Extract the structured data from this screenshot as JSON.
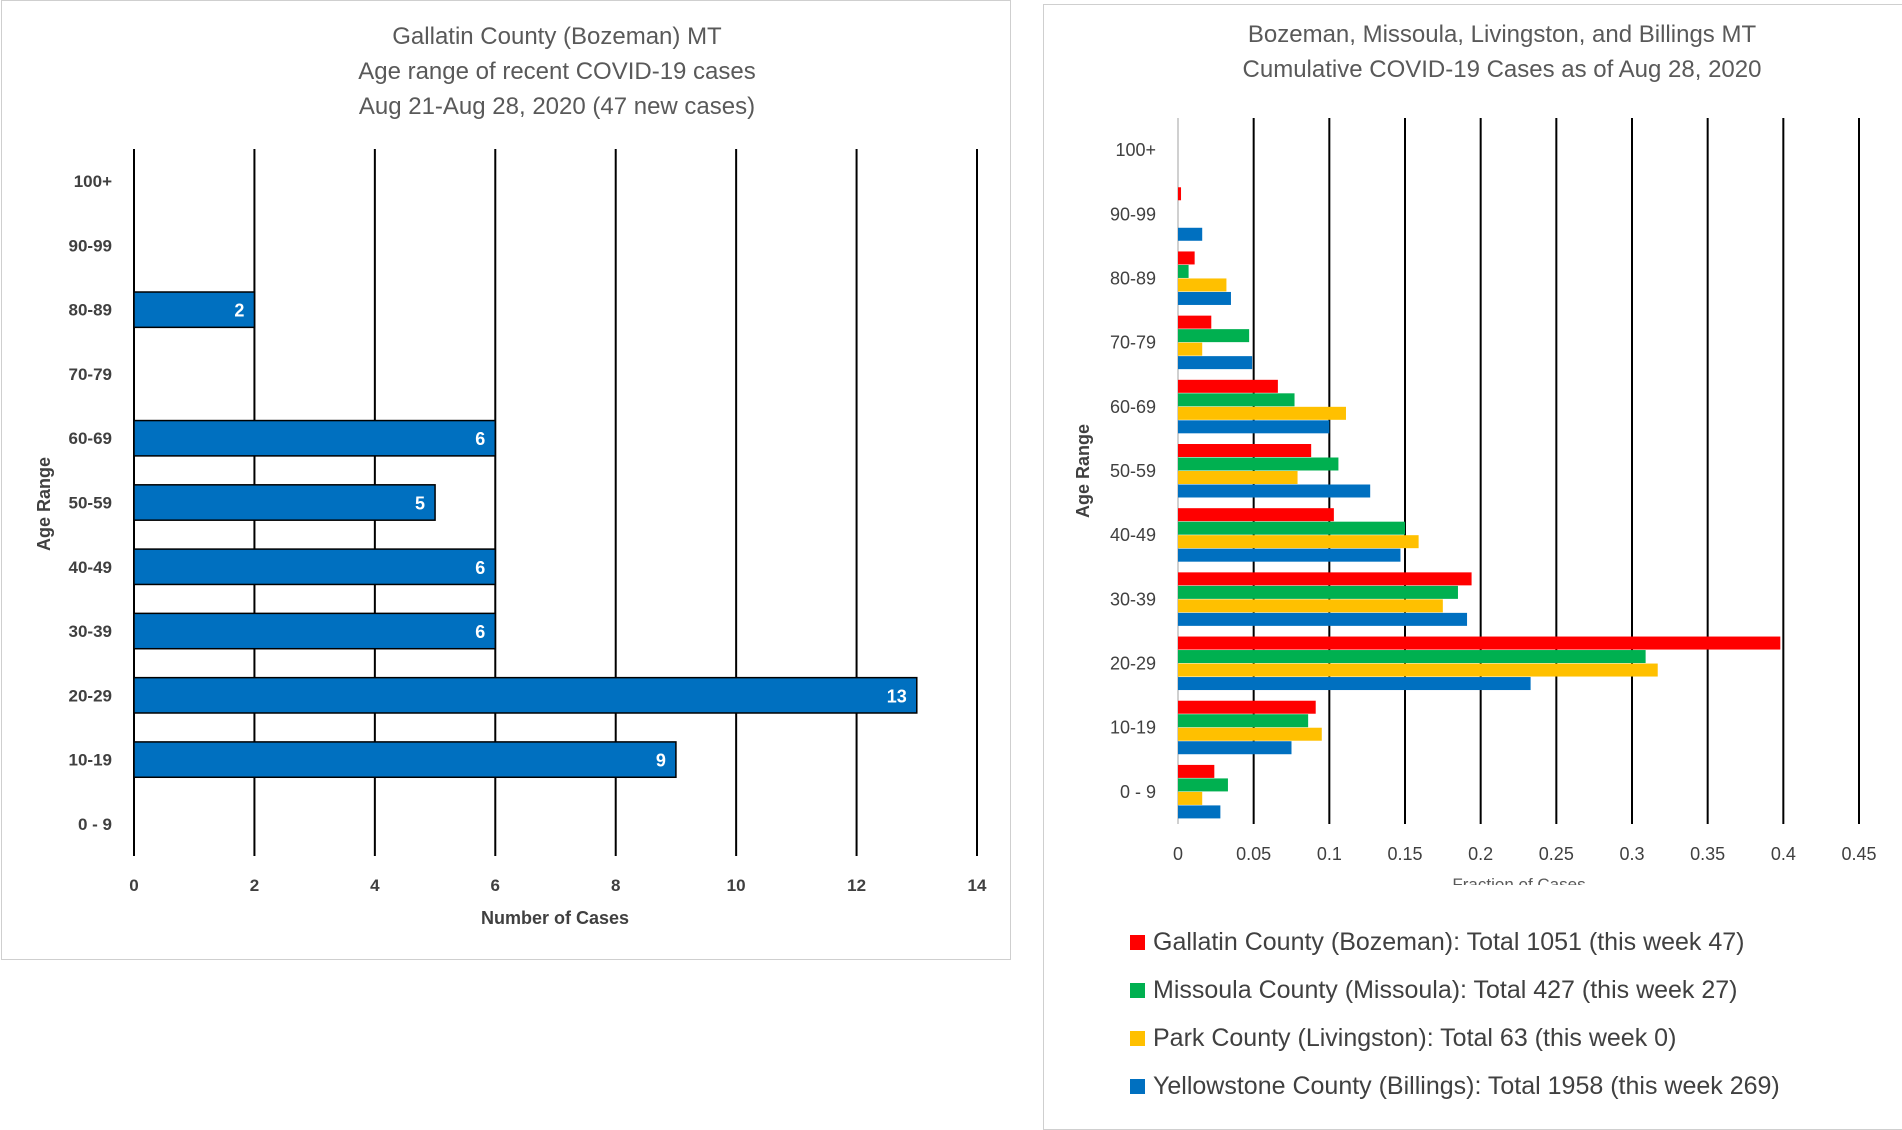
{
  "chart_data": [
    {
      "type": "bar",
      "orientation": "horizontal",
      "title": [
        "Gallatin County (Bozeman) MT",
        "Age range of recent COVID-19 cases",
        "Aug 21-Aug 28, 2020 (47 new cases)"
      ],
      "xlabel": "Number of Cases",
      "ylabel": "Age Range",
      "categories": [
        "0 - 9",
        "10-19",
        "20-29",
        "30-39",
        "40-49",
        "50-59",
        "60-69",
        "70-79",
        "80-89",
        "90-99",
        "100+"
      ],
      "values": [
        0,
        9,
        13,
        6,
        6,
        5,
        6,
        0,
        2,
        0,
        0
      ],
      "value_labels": [
        "",
        "9",
        "13",
        "6",
        "6",
        "5",
        "6",
        "",
        "2",
        "",
        ""
      ],
      "xlim": [
        0,
        14
      ],
      "xticks": [
        "0",
        "2",
        "4",
        "6",
        "8",
        "10",
        "12",
        "14"
      ],
      "grid": true,
      "bar_color": "#0070c0"
    },
    {
      "type": "bar",
      "orientation": "horizontal",
      "title": [
        "Bozeman, Missoula, Livingston, and Billings MT",
        "Cumulative COVID-19 Cases as of Aug 28, 2020"
      ],
      "xlabel": "Fraction of Cases",
      "ylabel": "Age Range",
      "categories": [
        "0 - 9",
        "10-19",
        "20-29",
        "30-39",
        "40-49",
        "50-59",
        "60-69",
        "70-79",
        "80-89",
        "90-99",
        "100+"
      ],
      "xlim": [
        0,
        0.45
      ],
      "xticks": [
        "0",
        "0.05",
        "0.1",
        "0.15",
        "0.2",
        "0.25",
        "0.3",
        "0.35",
        "0.4",
        "0.45"
      ],
      "grid": true,
      "legend_position": "bottom",
      "series": [
        {
          "name": "Gallatin County (Bozeman): Total 1051 (this week 47)",
          "color": "#ff0000",
          "values": [
            0.024,
            0.091,
            0.398,
            0.194,
            0.103,
            0.088,
            0.066,
            0.022,
            0.011,
            0.002,
            0
          ]
        },
        {
          "name": "Missoula County (Missoula): Total 427 (this week 27)",
          "color": "#00b050",
          "values": [
            0.033,
            0.086,
            0.309,
            0.185,
            0.15,
            0.106,
            0.077,
            0.047,
            0.007,
            0,
            0
          ]
        },
        {
          "name": "Park County (Livingston): Total 63 (this week 0)",
          "color": "#ffc000",
          "values": [
            0.016,
            0.095,
            0.317,
            0.175,
            0.159,
            0.079,
            0.111,
            0.016,
            0.032,
            0,
            0
          ]
        },
        {
          "name": "Yellowstone County (Billings): Total 1958 (this week 269)",
          "color": "#0070c0",
          "values": [
            0.028,
            0.075,
            0.233,
            0.191,
            0.147,
            0.127,
            0.1,
            0.049,
            0.035,
            0.016,
            0
          ]
        }
      ]
    }
  ]
}
